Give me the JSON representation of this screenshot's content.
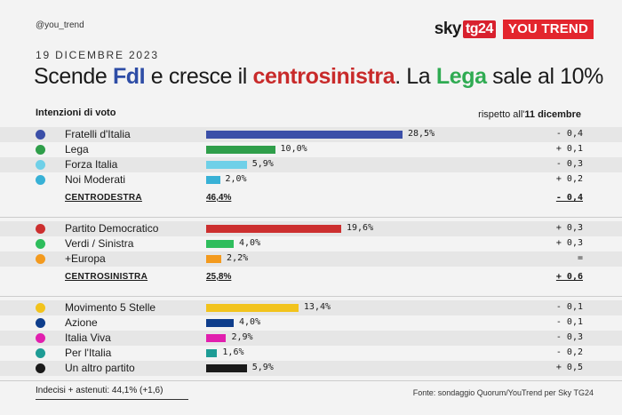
{
  "handle": "@you_trend",
  "logos": {
    "sky": "sky",
    "tg24": "tg24",
    "youtrend": "YOU TREND"
  },
  "date": "19 DICEMBRE 2023",
  "headline": {
    "p1": "Scende ",
    "fdi": "FdI",
    "p2": " e cresce il ",
    "cs": "centrosinistra",
    "p3": ". La ",
    "lega": "Lega",
    "p4": " sale al 10%"
  },
  "section_label": "Intenzioni di voto",
  "compare_label": "rispetto all'",
  "compare_date": "11 dicembre",
  "chart_data": {
    "type": "bar",
    "title": "Intenzioni di voto",
    "unit": "%",
    "groups": [
      {
        "total_label": "CENTRODESTRA",
        "total": "46,4%",
        "total_delta": "- 0,4",
        "parties": [
          {
            "name": "Fratelli d'Italia",
            "value": 28.5,
            "label": "28,5%",
            "delta": "- 0,4",
            "color": "#3b4fa8"
          },
          {
            "name": "Lega",
            "value": 10.0,
            "label": "10,0%",
            "delta": "+ 0,1",
            "color": "#2f9e4a"
          },
          {
            "name": "Forza Italia",
            "value": 5.9,
            "label": "5,9%",
            "delta": "- 0,3",
            "color": "#6fd0e8"
          },
          {
            "name": "Noi Moderati",
            "value": 2.0,
            "label": "2,0%",
            "delta": "+ 0,2",
            "color": "#38b1d6"
          }
        ]
      },
      {
        "total_label": "CENTROSINISTRA",
        "total": "25,8%",
        "total_delta": "+ 0,6",
        "parties": [
          {
            "name": "Partito Democratico",
            "value": 19.6,
            "label": "19,6%",
            "delta": "+ 0,3",
            "color": "#cc2f2f"
          },
          {
            "name": "Verdi / Sinistra",
            "value": 4.0,
            "label": "4,0%",
            "delta": "+ 0,3",
            "color": "#2ebd5c"
          },
          {
            "name": "+Europa",
            "value": 2.2,
            "label": "2,2%",
            "delta": "=",
            "color": "#f39a1e"
          }
        ]
      },
      {
        "parties": [
          {
            "name": "Movimento 5 Stelle",
            "value": 13.4,
            "label": "13,4%",
            "delta": "- 0,1",
            "color": "#f2c31c"
          },
          {
            "name": "Azione",
            "value": 4.0,
            "label": "4,0%",
            "delta": "- 0,1",
            "color": "#0f3e8c"
          },
          {
            "name": "Italia Viva",
            "value": 2.9,
            "label": "2,9%",
            "delta": "- 0,3",
            "color": "#e11fae"
          },
          {
            "name": "Per l'Italia",
            "value": 1.6,
            "label": "1,6%",
            "delta": "- 0,2",
            "color": "#1e9c95"
          },
          {
            "name": "Un altro partito",
            "value": 5.9,
            "label": "5,9%",
            "delta": "+ 0,5",
            "color": "#1a1a1a"
          }
        ]
      }
    ]
  },
  "footer_left": "Indecisi + astenuti: 44,1% (+1,6)",
  "footer_right": "Fonte: sondaggio Quorum/YouTrend per Sky TG24"
}
